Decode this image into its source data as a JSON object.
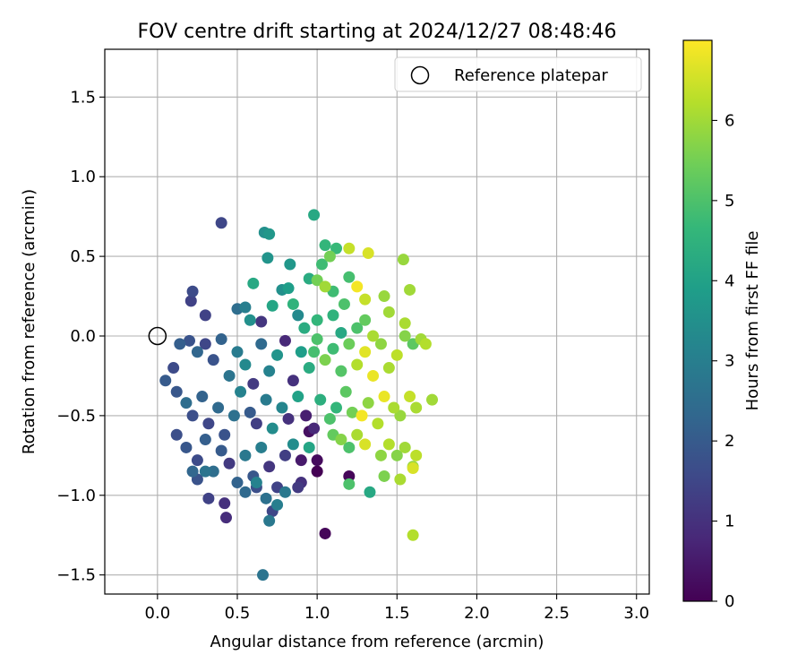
{
  "chart_data": {
    "type": "scatter",
    "title": "FOV centre drift starting at 2024/12/27 08:48:46",
    "xlabel": "Angular distance from reference (arcmin)",
    "ylabel": "Rotation from reference (arcmin)",
    "xlim": [
      -0.33,
      3.08
    ],
    "ylim": [
      -1.62,
      1.8
    ],
    "xticks": [
      "0.0",
      "0.5",
      "1.0",
      "1.5",
      "2.0",
      "2.5",
      "3.0"
    ],
    "yticks": [
      "1.5",
      "1.0",
      "0.5",
      "0.0",
      "−0.5",
      "−1.0",
      "−1.5"
    ],
    "grid": true,
    "legend": {
      "placement": "top-right",
      "entries": [
        "Reference platepar"
      ]
    },
    "reference_point": {
      "x": 0.0,
      "y": 0.0
    },
    "colorbar": {
      "label": "Hours from first FF file",
      "range": [
        0,
        7.0
      ],
      "ticks": [
        "0",
        "1",
        "2",
        "3",
        "4",
        "5",
        "6"
      ],
      "colormap": [
        "#440154",
        "#482878",
        "#3e4989",
        "#31688e",
        "#26828e",
        "#1f9e89",
        "#35b779",
        "#6ece58",
        "#b5de2b",
        "#fde725"
      ]
    },
    "points": [
      [
        0.4,
        0.71,
        1.5
      ],
      [
        0.67,
        0.65,
        3.5
      ],
      [
        0.7,
        0.64,
        3.7
      ],
      [
        0.98,
        0.76,
        4.2
      ],
      [
        1.05,
        0.57,
        4.6
      ],
      [
        1.12,
        0.55,
        4.7
      ],
      [
        1.2,
        0.55,
        6.4
      ],
      [
        1.32,
        0.52,
        6.6
      ],
      [
        1.08,
        0.5,
        5.5
      ],
      [
        1.03,
        0.45,
        4.8
      ],
      [
        0.69,
        0.49,
        3.6
      ],
      [
        0.83,
        0.45,
        3.7
      ],
      [
        1.54,
        0.48,
        5.9
      ],
      [
        0.22,
        0.28,
        1.6
      ],
      [
        0.21,
        0.22,
        1.4
      ],
      [
        0.6,
        0.33,
        4.2
      ],
      [
        0.78,
        0.29,
        3.5
      ],
      [
        0.82,
        0.3,
        3.9
      ],
      [
        0.95,
        0.36,
        4.3
      ],
      [
        1.0,
        0.35,
        5.5
      ],
      [
        1.05,
        0.31,
        6.0
      ],
      [
        1.1,
        0.28,
        4.8
      ],
      [
        1.2,
        0.37,
        4.9
      ],
      [
        1.25,
        0.31,
        6.9
      ],
      [
        1.3,
        0.23,
        6.4
      ],
      [
        1.42,
        0.25,
        5.9
      ],
      [
        1.58,
        0.29,
        6.0
      ],
      [
        0.3,
        0.13,
        1.4
      ],
      [
        0.5,
        0.17,
        2.5
      ],
      [
        0.55,
        0.18,
        3.0
      ],
      [
        0.58,
        0.1,
        3.5
      ],
      [
        0.65,
        0.09,
        1.1
      ],
      [
        0.72,
        0.19,
        4.1
      ],
      [
        0.85,
        0.2,
        4.5
      ],
      [
        0.88,
        0.13,
        3.3
      ],
      [
        1.0,
        0.1,
        4.6
      ],
      [
        1.1,
        0.13,
        4.5
      ],
      [
        1.17,
        0.2,
        5.0
      ],
      [
        1.3,
        0.1,
        5.3
      ],
      [
        1.45,
        0.15,
        6.0
      ],
      [
        1.55,
        0.08,
        6.1
      ],
      [
        0.1,
        -0.2,
        1.6
      ],
      [
        0.14,
        -0.05,
        2.1
      ],
      [
        0.2,
        -0.03,
        1.8
      ],
      [
        0.25,
        -0.1,
        2.3
      ],
      [
        0.3,
        -0.05,
        1.5
      ],
      [
        0.35,
        -0.15,
        1.8
      ],
      [
        0.4,
        -0.02,
        2.2
      ],
      [
        0.45,
        -0.25,
        2.7
      ],
      [
        0.5,
        -0.1,
        2.9
      ],
      [
        0.55,
        -0.18,
        3.3
      ],
      [
        0.6,
        -0.3,
        1.2
      ],
      [
        0.65,
        -0.05,
        2.4
      ],
      [
        0.7,
        -0.22,
        3.1
      ],
      [
        0.75,
        -0.12,
        3.6
      ],
      [
        0.8,
        -0.03,
        0.8
      ],
      [
        0.85,
        -0.28,
        1.0
      ],
      [
        0.9,
        -0.1,
        3.9
      ],
      [
        0.95,
        -0.2,
        4.3
      ],
      [
        1.0,
        -0.02,
        5.0
      ],
      [
        1.05,
        -0.15,
        5.6
      ],
      [
        1.1,
        -0.08,
        4.8
      ],
      [
        1.15,
        -0.22,
        5.1
      ],
      [
        1.2,
        -0.05,
        5.4
      ],
      [
        1.25,
        -0.18,
        6.2
      ],
      [
        1.3,
        -0.1,
        6.7
      ],
      [
        1.35,
        -0.25,
        6.8
      ],
      [
        1.4,
        -0.05,
        5.8
      ],
      [
        1.45,
        -0.2,
        6.1
      ],
      [
        1.5,
        -0.12,
        6.3
      ],
      [
        1.55,
        0.0,
        5.7
      ],
      [
        1.6,
        -0.05,
        5.2
      ],
      [
        1.65,
        -0.02,
        6.0
      ],
      [
        1.68,
        -0.05,
        6.2
      ],
      [
        0.05,
        -0.28,
        2.0
      ],
      [
        0.12,
        -0.35,
        1.9
      ],
      [
        0.18,
        -0.42,
        2.5
      ],
      [
        0.22,
        -0.5,
        1.7
      ],
      [
        0.28,
        -0.38,
        2.2
      ],
      [
        0.32,
        -0.55,
        1.5
      ],
      [
        0.38,
        -0.45,
        2.4
      ],
      [
        0.42,
        -0.62,
        1.8
      ],
      [
        0.48,
        -0.5,
        2.6
      ],
      [
        0.52,
        -0.35,
        3.1
      ],
      [
        0.58,
        -0.48,
        2.0
      ],
      [
        0.62,
        -0.55,
        1.3
      ],
      [
        0.68,
        -0.4,
        2.9
      ],
      [
        0.72,
        -0.58,
        3.4
      ],
      [
        0.78,
        -0.45,
        3.2
      ],
      [
        0.82,
        -0.52,
        1.0
      ],
      [
        0.88,
        -0.38,
        4.0
      ],
      [
        0.93,
        -0.5,
        0.6
      ],
      [
        0.98,
        -0.58,
        0.8
      ],
      [
        1.02,
        -0.4,
        4.4
      ],
      [
        1.08,
        -0.52,
        5.0
      ],
      [
        1.12,
        -0.45,
        4.6
      ],
      [
        1.18,
        -0.35,
        5.2
      ],
      [
        1.22,
        -0.48,
        5.5
      ],
      [
        1.28,
        -0.5,
        6.9
      ],
      [
        1.32,
        -0.42,
        5.8
      ],
      [
        1.38,
        -0.55,
        6.2
      ],
      [
        1.42,
        -0.38,
        6.8
      ],
      [
        1.48,
        -0.45,
        6.1
      ],
      [
        1.52,
        -0.5,
        5.9
      ],
      [
        1.58,
        -0.38,
        6.4
      ],
      [
        1.62,
        -0.45,
        6.1
      ],
      [
        1.72,
        -0.4,
        6.0
      ],
      [
        0.12,
        -0.62,
        1.7
      ],
      [
        0.18,
        -0.7,
        1.9
      ],
      [
        0.25,
        -0.78,
        1.6
      ],
      [
        0.3,
        -0.65,
        2.1
      ],
      [
        0.35,
        -0.85,
        2.5
      ],
      [
        0.4,
        -0.72,
        2.0
      ],
      [
        0.45,
        -0.8,
        1.2
      ],
      [
        0.5,
        -0.92,
        2.2
      ],
      [
        0.55,
        -0.75,
        2.8
      ],
      [
        0.6,
        -0.88,
        1.9
      ],
      [
        0.65,
        -0.7,
        3.0
      ],
      [
        0.7,
        -0.82,
        1.1
      ],
      [
        0.75,
        -0.95,
        1.4
      ],
      [
        0.8,
        -0.75,
        1.3
      ],
      [
        0.85,
        -0.68,
        3.4
      ],
      [
        0.9,
        -0.92,
        1.0
      ],
      [
        0.95,
        -0.6,
        0.3
      ],
      [
        1.0,
        -0.78,
        0.2
      ],
      [
        1.1,
        -0.62,
        5.3
      ],
      [
        1.15,
        -0.65,
        5.7
      ],
      [
        1.2,
        -0.7,
        5.0
      ],
      [
        1.25,
        -0.62,
        6.1
      ],
      [
        1.3,
        -0.68,
        6.6
      ],
      [
        1.4,
        -0.75,
        5.8
      ],
      [
        1.45,
        -0.68,
        6.2
      ],
      [
        1.5,
        -0.75,
        5.7
      ],
      [
        1.55,
        -0.7,
        6.0
      ],
      [
        1.6,
        -0.82,
        5.9
      ],
      [
        1.62,
        -0.75,
        6.3
      ],
      [
        0.22,
        -0.85,
        2.3
      ],
      [
        0.25,
        -0.9,
        1.8
      ],
      [
        0.3,
        -0.85,
        2.7
      ],
      [
        0.32,
        -1.02,
        1.4
      ],
      [
        0.42,
        -1.05,
        1.0
      ],
      [
        0.43,
        -1.14,
        0.9
      ],
      [
        0.55,
        -0.98,
        2.4
      ],
      [
        0.62,
        -0.95,
        1.7
      ],
      [
        0.68,
        -1.02,
        2.6
      ],
      [
        0.72,
        -1.1,
        1.5
      ],
      [
        0.75,
        -1.06,
        3.0
      ],
      [
        0.8,
        -0.98,
        2.8
      ],
      [
        0.88,
        -0.95,
        1.2
      ],
      [
        0.9,
        -0.78,
        0.5
      ],
      [
        0.62,
        -0.92,
        3.1
      ],
      [
        0.7,
        -1.16,
        2.8
      ],
      [
        0.95,
        -0.7,
        4.1
      ],
      [
        1.0,
        -0.85,
        0.0
      ],
      [
        1.05,
        -1.24,
        0.1
      ],
      [
        1.2,
        -0.88,
        0.1
      ],
      [
        1.2,
        -0.93,
        5.0
      ],
      [
        1.33,
        -0.98,
        4.2
      ],
      [
        1.42,
        -0.88,
        5.6
      ],
      [
        1.52,
        -0.9,
        6.1
      ],
      [
        1.6,
        -1.25,
        6.2
      ],
      [
        1.6,
        -0.83,
        6.6
      ],
      [
        0.66,
        -1.5,
        2.7
      ],
      [
        1.35,
        0.0,
        6.1
      ],
      [
        1.25,
        0.05,
        5.0
      ],
      [
        1.15,
        0.02,
        4.2
      ],
      [
        0.92,
        0.05,
        4.3
      ],
      [
        0.98,
        -0.1,
        4.9
      ]
    ]
  }
}
